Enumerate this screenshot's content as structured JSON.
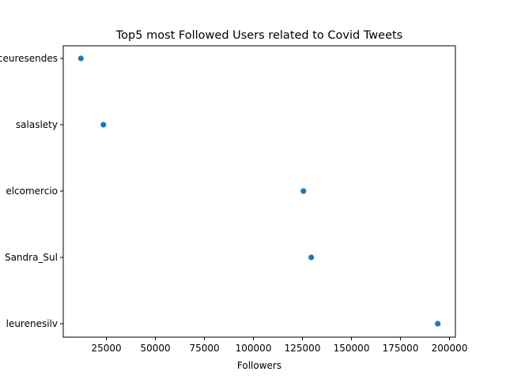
{
  "chart_data": {
    "type": "scatter",
    "title": "Top5 most Followed Users related to Covid Tweets",
    "xlabel": "Followers",
    "ylabel": "",
    "xlim": [
      3000,
      203000
    ],
    "xticks": [
      25000,
      50000,
      75000,
      100000,
      125000,
      150000,
      175000,
      200000
    ],
    "xtick_labels": [
      "25000",
      "50000",
      "75000",
      "100000",
      "125000",
      "150000",
      "175000",
      "200000"
    ],
    "categories": [
      "ceuresendes",
      "salaslety",
      "elcomercio",
      "Sandra_Sul",
      "leurenesilv"
    ],
    "values": [
      12000,
      23500,
      125500,
      129500,
      194000
    ],
    "marker_color": "#1f77b4",
    "grid": false,
    "legend": "none"
  }
}
